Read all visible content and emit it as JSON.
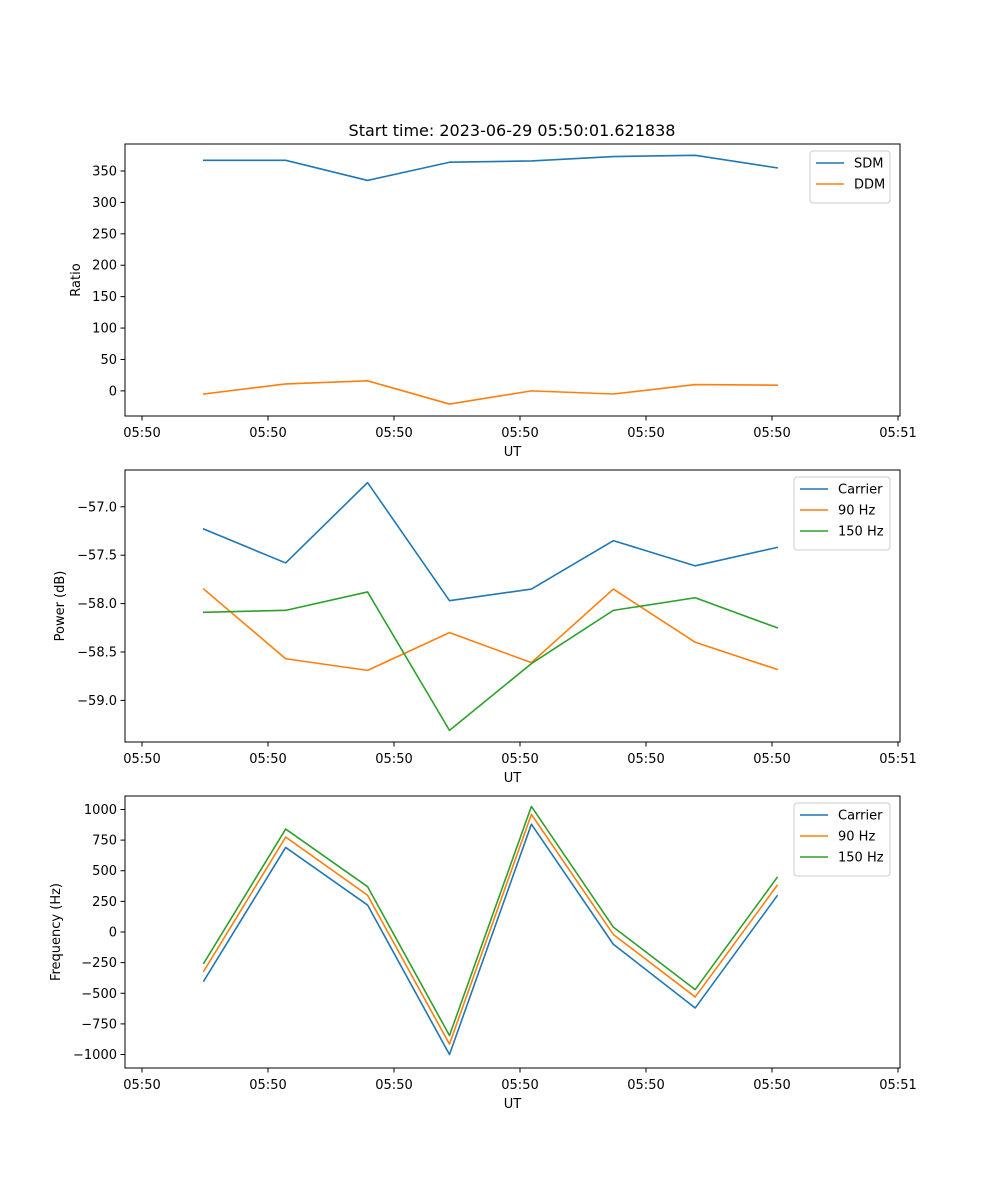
{
  "chart_data": [
    {
      "type": "line",
      "title": "Start time: 2023-06-29 05:50:01.621838",
      "xlabel": "UT",
      "ylabel": "Ratio",
      "xtick_labels": [
        "05:50",
        "05:50",
        "05:50",
        "05:50",
        "05:50",
        "05:50",
        "05:51"
      ],
      "yticks": [
        0,
        50,
        100,
        150,
        200,
        250,
        300,
        350
      ],
      "ylim": [
        -40,
        393
      ],
      "xlim": [
        -0.625,
        5.525
      ],
      "x": [
        0,
        0.65,
        1.3,
        1.95,
        2.6,
        3.25,
        3.9,
        4.55
      ],
      "legend_position": "top-right",
      "grid": false,
      "series": [
        {
          "name": "SDM",
          "color": "#1f77b4",
          "values": [
            367,
            367,
            335,
            364,
            366,
            373,
            375,
            355
          ]
        },
        {
          "name": "DDM",
          "color": "#ff7f0e",
          "values": [
            -5,
            11,
            16,
            -21,
            0,
            -5,
            10,
            9
          ]
        }
      ]
    },
    {
      "type": "line",
      "title": "",
      "xlabel": "UT",
      "ylabel": "Power (dB)",
      "xtick_labels": [
        "05:50",
        "05:50",
        "05:50",
        "05:50",
        "05:50",
        "05:50",
        "05:51"
      ],
      "yticks": [
        -57.0,
        -57.5,
        -58.0,
        -58.5,
        -59.0
      ],
      "ytick_labels": [
        "−57.0",
        "−57.5",
        "−58.0",
        "−58.5",
        "−59.0"
      ],
      "ylim": [
        -59.43,
        -56.62
      ],
      "xlim": [
        -0.625,
        5.525
      ],
      "x": [
        0,
        0.65,
        1.3,
        1.95,
        2.6,
        3.25,
        3.9,
        4.55
      ],
      "legend_position": "top-right",
      "grid": false,
      "series": [
        {
          "name": "Carrier",
          "color": "#1f77b4",
          "values": [
            -57.23,
            -57.58,
            -56.75,
            -57.97,
            -57.85,
            -57.35,
            -57.61,
            -57.42
          ]
        },
        {
          "name": "90 Hz",
          "color": "#ff7f0e",
          "values": [
            -57.85,
            -58.57,
            -58.69,
            -58.3,
            -58.61,
            -57.85,
            -58.4,
            -58.68
          ]
        },
        {
          "name": "150 Hz",
          "color": "#2ca02c",
          "values": [
            -58.09,
            -58.07,
            -57.88,
            -59.31,
            -58.62,
            -58.07,
            -57.94,
            -58.25
          ]
        }
      ]
    },
    {
      "type": "line",
      "title": "",
      "xlabel": "UT",
      "ylabel": "Frequency (Hz)",
      "xtick_labels": [
        "05:50",
        "05:50",
        "05:50",
        "05:50",
        "05:50",
        "05:50",
        "05:51"
      ],
      "yticks": [
        1000,
        750,
        500,
        250,
        0,
        -250,
        -500,
        -750,
        -1000
      ],
      "ytick_labels": [
        "1000",
        "750",
        "500",
        "250",
        "0",
        "−250",
        "−500",
        "−750",
        "−1000"
      ],
      "ylim": [
        -1110,
        1110
      ],
      "xlim": [
        -0.625,
        5.525
      ],
      "x": [
        0,
        0.65,
        1.3,
        1.95,
        2.6,
        3.25,
        3.9,
        4.55
      ],
      "legend_position": "top-right",
      "grid": false,
      "series": [
        {
          "name": "Carrier",
          "color": "#1f77b4",
          "values": [
            -400,
            690,
            220,
            -1000,
            880,
            -100,
            -620,
            295
          ]
        },
        {
          "name": "90 Hz",
          "color": "#ff7f0e",
          "values": [
            -320,
            775,
            300,
            -915,
            960,
            -20,
            -530,
            380
          ]
        },
        {
          "name": "150 Hz",
          "color": "#2ca02c",
          "values": [
            -255,
            840,
            370,
            -845,
            1025,
            40,
            -470,
            445
          ]
        }
      ]
    }
  ]
}
